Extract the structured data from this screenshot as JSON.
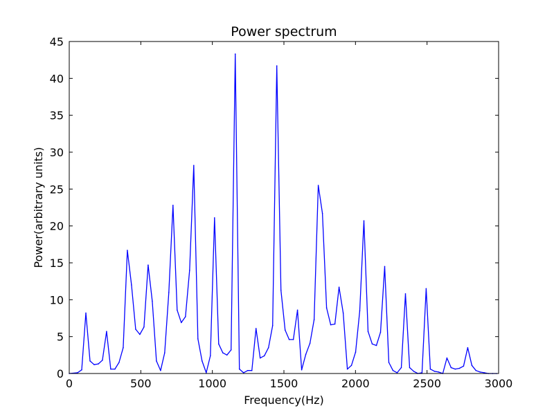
{
  "chart_data": {
    "type": "line",
    "title": "Power spectrum",
    "xlabel": "Frequency(Hz)",
    "ylabel": "Power(arbitrary units)",
    "xlim": [
      0,
      3000
    ],
    "ylim": [
      0,
      45
    ],
    "xticks": [
      0,
      500,
      1000,
      1500,
      2000,
      2500,
      3000
    ],
    "yticks": [
      0,
      5,
      10,
      15,
      20,
      25,
      30,
      35,
      40,
      45
    ],
    "grid": false,
    "line_color": "#0000ff",
    "series": [
      {
        "x": [
          0,
          58,
          87,
          116,
          145,
          174,
          203,
          232,
          261,
          290,
          319,
          348,
          377,
          406,
          435,
          464,
          493,
          522,
          551,
          580,
          609,
          638,
          667,
          696,
          725,
          754,
          783,
          812,
          841,
          870,
          899,
          928,
          957,
          986,
          1015,
          1044,
          1073,
          1102,
          1131,
          1160,
          1189,
          1218,
          1247,
          1276,
          1305,
          1334,
          1363,
          1392,
          1421,
          1450,
          1479,
          1508,
          1537,
          1566,
          1595,
          1624,
          1653,
          1682,
          1711,
          1740,
          1769,
          1798,
          1827,
          1856,
          1885,
          1914,
          1943,
          1972,
          2001,
          2030,
          2059,
          2088,
          2117,
          2146,
          2175,
          2204,
          2233,
          2262,
          2291,
          2320,
          2349,
          2378,
          2407,
          2436,
          2465,
          2494,
          2523,
          2552,
          2581,
          2610,
          2639,
          2668,
          2697,
          2726,
          2755,
          2784,
          2813,
          2842,
          2871,
          2900,
          2929,
          2958,
          2987
        ],
        "y": [
          0,
          0.1,
          0.5,
          8.2,
          1.7,
          1.2,
          1.3,
          1.8,
          5.7,
          0.6,
          0.6,
          1.5,
          3.5,
          16.7,
          12,
          6,
          5.3,
          6.3,
          14.7,
          9.8,
          1.7,
          0.4,
          2.8,
          11,
          22.8,
          8.6,
          6.9,
          7.7,
          14,
          28.2,
          4.7,
          1.7,
          0.1,
          2.4,
          21.1,
          4,
          2.8,
          2.5,
          3.2,
          43.3,
          0.6,
          0.1,
          0.4,
          0.4,
          6.1,
          2.1,
          2.4,
          3.5,
          6.5,
          41.7,
          11.3,
          5.9,
          4.6,
          4.6,
          8.6,
          0.5,
          2.6,
          4.1,
          7.3,
          25.5,
          21.7,
          8.9,
          6.6,
          6.7,
          11.7,
          8.2,
          0.6,
          1.1,
          2.9,
          8.5,
          20.7,
          5.7,
          4,
          3.8,
          5.6,
          14.5,
          1.5,
          0.4,
          0.1,
          0.8,
          10.8,
          0.8,
          0.3,
          0,
          0.1,
          11.5,
          0.6,
          0.3,
          0.2,
          0,
          2.1,
          0.8,
          0.6,
          0.7,
          1,
          3.5,
          1.1,
          0.4,
          0.2,
          0.1,
          0,
          0,
          0
        ]
      }
    ]
  }
}
